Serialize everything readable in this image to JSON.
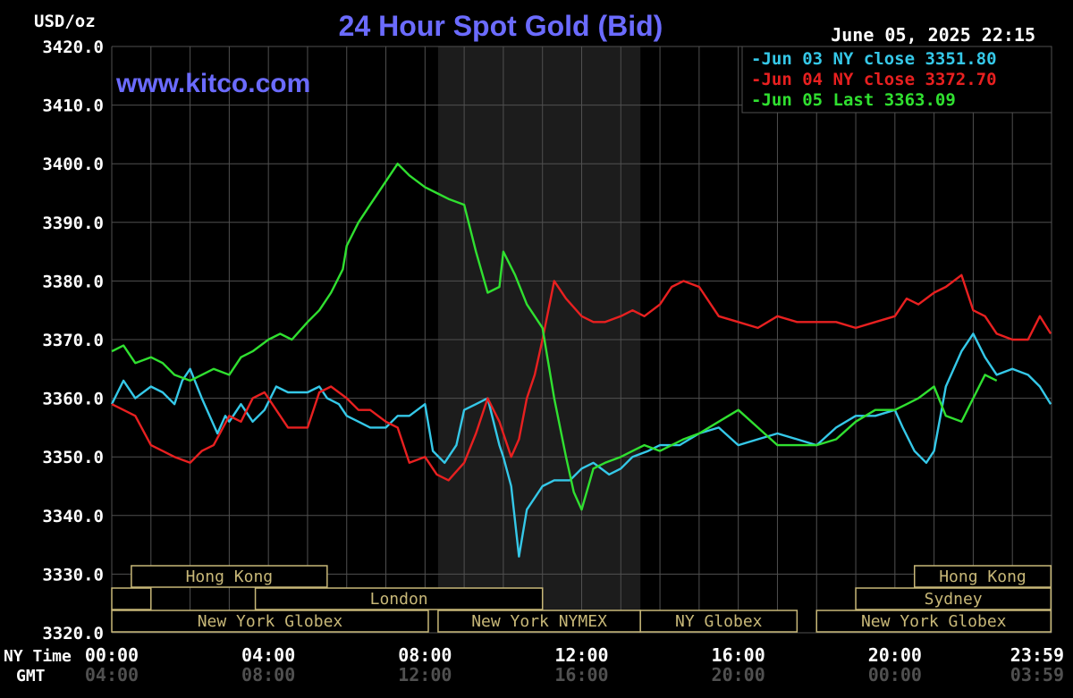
{
  "header": {
    "title": "24 Hour Spot Gold (Bid)",
    "unit": "USD/oz",
    "timestamp": "June 05, 2025 22:15",
    "website": "www.kitco.com"
  },
  "axis_labels": {
    "ny_time": "NY Time",
    "gmt": "GMT"
  },
  "colors": {
    "background": "#000000",
    "grid": "#505050",
    "text": "#ffffff",
    "title": "#6b6bff",
    "session_box": "#c8b878",
    "overnight_shade": "#1c1c1c",
    "series_jun03": "#35c8e8",
    "series_jun04": "#e82020",
    "series_jun05": "#30e030"
  },
  "sessions": [
    {
      "label": "Hong Kong",
      "row": 0,
      "start": "00:30",
      "end": "05:30"
    },
    {
      "label": "",
      "row": 1,
      "start": "00:00",
      "end": "01:00"
    },
    {
      "label": "London",
      "row": 1,
      "start": "03:40",
      "end": "11:00"
    },
    {
      "label": "New York Globex",
      "row": 2,
      "start": "00:00",
      "end": "08:05"
    },
    {
      "label": "New York NYMEX",
      "row": 2,
      "start": "08:20",
      "end": "13:30"
    },
    {
      "label": "NY Globex",
      "row": 2,
      "start": "13:30",
      "end": "17:30"
    },
    {
      "label": "Hong Kong",
      "row": 0,
      "start": "20:30",
      "end": "23:59"
    },
    {
      "label": "Sydney",
      "row": 1,
      "start": "19:00",
      "end": "23:59"
    },
    {
      "label": "New York Globex",
      "row": 2,
      "start": "18:00",
      "end": "23:59"
    }
  ],
  "overnight_shade": {
    "start": "08:20",
    "end": "13:30"
  },
  "chart_data": {
    "type": "line",
    "title": "24 Hour Spot Gold (Bid)",
    "ylabel": "USD/oz",
    "ylim": [
      3320,
      3420
    ],
    "yticks": [
      "3420.0",
      "3410.0",
      "3400.0",
      "3390.0",
      "3380.0",
      "3370.0",
      "3360.0",
      "3350.0",
      "3340.0",
      "3330.0",
      "3320.0"
    ],
    "xlim_hours": [
      0,
      24
    ],
    "xticks_ny": [
      "00:00",
      "04:00",
      "08:00",
      "12:00",
      "16:00",
      "20:00",
      "23:59"
    ],
    "xticks_gmt": [
      "04:00",
      "08:00",
      "12:00",
      "16:00",
      "20:00",
      "00:00",
      "03:59"
    ],
    "grid": true,
    "legend_position": "top-right",
    "series": [
      {
        "name": "Jun 03 NY close 3351.80",
        "color": "#35c8e8",
        "x": [
          0,
          0.3,
          0.6,
          1,
          1.3,
          1.6,
          1.8,
          2,
          2.3,
          2.7,
          2.9,
          3,
          3.3,
          3.6,
          3.9,
          4.2,
          4.5,
          5,
          5.3,
          5.5,
          5.8,
          6,
          6.3,
          6.6,
          7,
          7.3,
          7.6,
          8,
          8.2,
          8.5,
          8.8,
          9,
          9.3,
          9.6,
          9.9,
          10,
          10.2,
          10.4,
          10.6,
          11,
          11.3,
          11.7,
          12,
          12.3,
          12.7,
          13,
          13.3,
          13.7,
          14,
          14.5,
          15,
          15.5,
          16,
          16.5,
          17,
          17.5,
          18,
          18.5,
          19,
          19.5,
          20,
          20.2,
          20.5,
          20.8,
          21,
          21.3,
          21.7,
          22,
          22.3,
          22.6,
          23,
          23.4,
          23.7,
          23.98
        ],
        "y": [
          3359,
          3363,
          3360,
          3362,
          3361,
          3359,
          3363,
          3365,
          3360,
          3354,
          3357,
          3356,
          3359,
          3356,
          3358,
          3362,
          3361,
          3361,
          3362,
          3360,
          3359,
          3357,
          3356,
          3355,
          3355,
          3357,
          3357,
          3359,
          3351,
          3349,
          3352,
          3358,
          3359,
          3360,
          3352,
          3350,
          3345,
          3333,
          3341,
          3345,
          3346,
          3346,
          3348,
          3349,
          3347,
          3348,
          3350,
          3351,
          3352,
          3352,
          3354,
          3355,
          3352,
          3353,
          3354,
          3353,
          3352,
          3355,
          3357,
          3357,
          3358,
          3355,
          3351,
          3349,
          3351,
          3362,
          3368,
          3371,
          3367,
          3364,
          3365,
          3364,
          3362,
          3359
        ]
      },
      {
        "name": "Jun 04 NY close 3372.70",
        "color": "#e82020",
        "x": [
          0,
          0.3,
          0.6,
          1,
          1.3,
          1.6,
          2,
          2.3,
          2.6,
          3,
          3.3,
          3.6,
          3.9,
          4.2,
          4.5,
          5,
          5.3,
          5.6,
          6,
          6.3,
          6.6,
          7,
          7.3,
          7.6,
          8,
          8.3,
          8.6,
          9,
          9.3,
          9.6,
          9.9,
          10,
          10.2,
          10.4,
          10.6,
          10.8,
          11,
          11.3,
          11.6,
          12,
          12.3,
          12.6,
          13,
          13.3,
          13.6,
          14,
          14.3,
          14.6,
          15,
          15.5,
          16,
          16.5,
          17,
          17.5,
          18,
          18.5,
          19,
          19.5,
          20,
          20.3,
          20.6,
          21,
          21.3,
          21.7,
          22,
          22.3,
          22.6,
          23,
          23.4,
          23.7,
          23.98
        ],
        "y": [
          3359,
          3358,
          3357,
          3352,
          3351,
          3350,
          3349,
          3351,
          3352,
          3357,
          3356,
          3360,
          3361,
          3358,
          3355,
          3355,
          3361,
          3362,
          3360,
          3358,
          3358,
          3356,
          3355,
          3349,
          3350,
          3347,
          3346,
          3349,
          3354,
          3360,
          3356,
          3354,
          3350,
          3353,
          3360,
          3364,
          3370,
          3380,
          3377,
          3374,
          3373,
          3373,
          3374,
          3375,
          3374,
          3376,
          3379,
          3380,
          3379,
          3374,
          3373,
          3372,
          3374,
          3373,
          3373,
          3373,
          3372,
          3373,
          3374,
          3377,
          3376,
          3378,
          3379,
          3381,
          3375,
          3374,
          3371,
          3370,
          3370,
          3374,
          3371
        ]
      },
      {
        "name": "Jun 05 Last 3363.09",
        "color": "#30e030",
        "x": [
          0,
          0.3,
          0.6,
          1,
          1.3,
          1.6,
          2,
          2.3,
          2.6,
          3,
          3.3,
          3.6,
          4,
          4.3,
          4.6,
          5,
          5.3,
          5.6,
          5.9,
          6,
          6.3,
          6.6,
          7,
          7.3,
          7.6,
          8,
          8.3,
          8.6,
          9,
          9.3,
          9.6,
          9.9,
          10,
          10.3,
          10.6,
          11,
          11.3,
          11.6,
          11.8,
          12,
          12.3,
          12.6,
          13,
          13.3,
          13.6,
          14,
          14.3,
          14.6,
          15,
          15.5,
          16,
          16.5,
          17,
          17.5,
          18,
          18.5,
          19,
          19.5,
          20,
          20.3,
          20.6,
          21,
          21.3,
          21.7,
          22,
          22.3,
          22.6
        ],
        "y": [
          3368,
          3369,
          3366,
          3367,
          3366,
          3364,
          3363,
          3364,
          3365,
          3364,
          3367,
          3368,
          3370,
          3371,
          3370,
          3373,
          3375,
          3378,
          3382,
          3386,
          3390,
          3393,
          3397,
          3400,
          3398,
          3396,
          3395,
          3394,
          3393,
          3385,
          3378,
          3379,
          3385,
          3381,
          3376,
          3372,
          3360,
          3350,
          3344,
          3341,
          3348,
          3349,
          3350,
          3351,
          3352,
          3351,
          3352,
          3353,
          3354,
          3356,
          3358,
          3355,
          3352,
          3352,
          3352,
          3353,
          3356,
          3358,
          3358,
          3359,
          3360,
          3362,
          3357,
          3356,
          3360,
          3364,
          3363
        ]
      }
    ]
  }
}
